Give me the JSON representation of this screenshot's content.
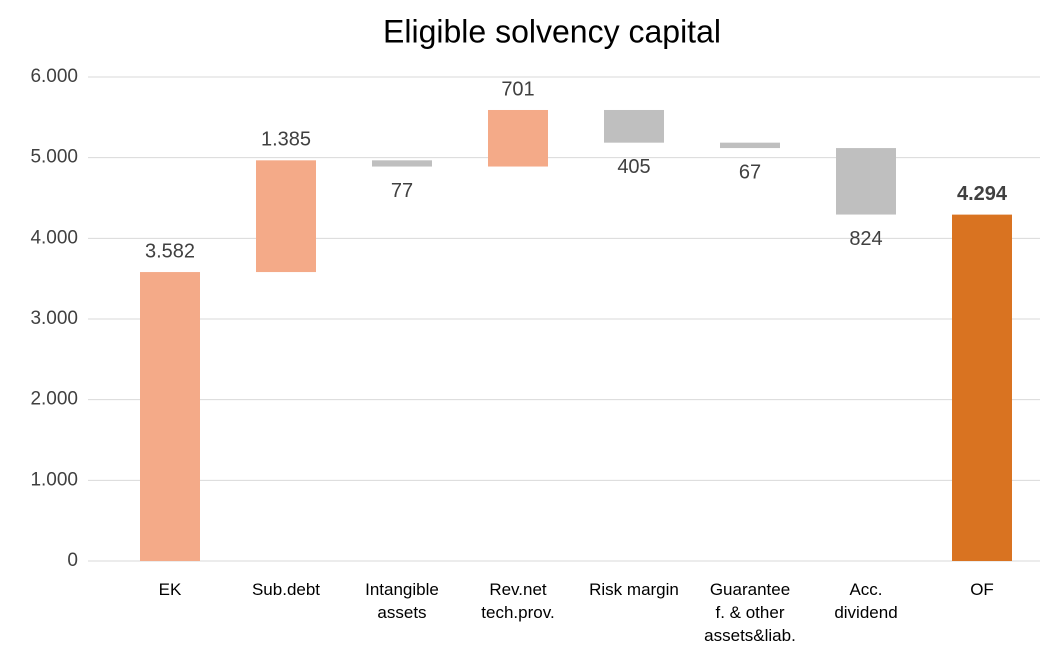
{
  "chart_data": {
    "type": "waterfall",
    "title": "Eligible solvency capital",
    "categories": [
      "EK",
      "Sub.debt",
      "Intangible\nassets",
      "Rev.net\ntech.prov.",
      "Risk margin",
      "Guarantee\nf. & other\nassets&liab.",
      "Acc.\ndividend",
      "OF"
    ],
    "values": [
      3582,
      1385,
      77,
      701,
      405,
      67,
      824,
      4294
    ],
    "value_labels": [
      "3.582",
      "1.385",
      "77",
      "701",
      "405",
      "67",
      "824",
      "4.294"
    ],
    "measure": [
      "absolute",
      "increase",
      "decrease",
      "increase",
      "decrease",
      "decrease",
      "decrease",
      "total"
    ],
    "colors": {
      "absolute": "#f4aa88",
      "increase": "#f4aa88",
      "decrease": "#bfbfbf",
      "total": "#d97321"
    },
    "ylim": [
      0,
      6000
    ],
    "yticks": [
      {
        "value": 0,
        "label": "0"
      },
      {
        "value": 1000,
        "label": "1.000"
      },
      {
        "value": 2000,
        "label": "2.000"
      },
      {
        "value": 3000,
        "label": "3.000"
      },
      {
        "value": 4000,
        "label": "4.000"
      },
      {
        "value": 5000,
        "label": "5.000"
      },
      {
        "value": 6000,
        "label": "6.000"
      }
    ],
    "grid": true
  }
}
